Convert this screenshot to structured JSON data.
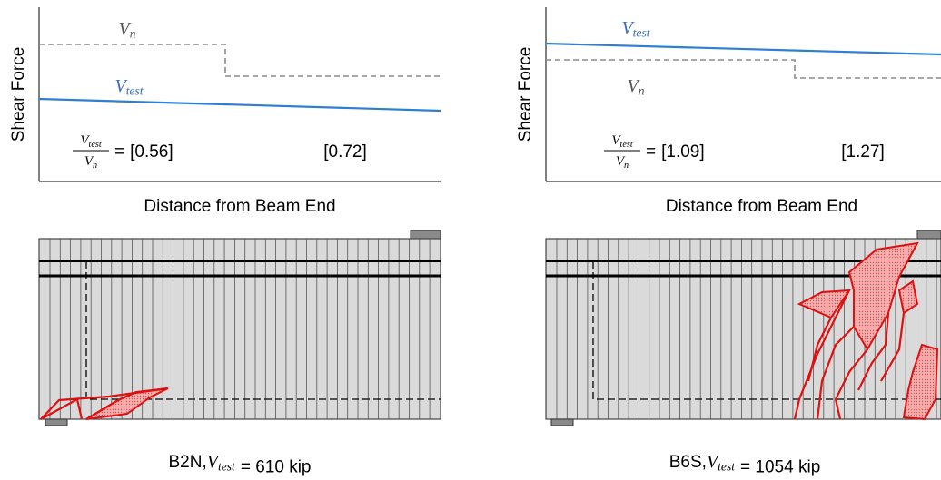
{
  "panels": [
    {
      "y_axis_label": "Shear Force",
      "x_axis_label": "Distance from Beam End",
      "vn_label": {
        "symbol": "V",
        "subscript": "n"
      },
      "vtest_label": {
        "symbol": "V",
        "subscript": "test"
      },
      "ratio": {
        "numerator": {
          "symbol": "V",
          "subscript": "test"
        },
        "denominator": {
          "symbol": "V",
          "subscript": "n"
        },
        "equals": "=",
        "values": [
          "[0.56]",
          "[0.72]"
        ]
      },
      "caption": {
        "specimen": "B2N,",
        "symbol": "V",
        "subscript": "test",
        "rest": "= 610 kip"
      }
    },
    {
      "y_axis_label": "Shear Force",
      "x_axis_label": "Distance from Beam End",
      "vn_label": {
        "symbol": "V",
        "subscript": "n"
      },
      "vtest_label": {
        "symbol": "V",
        "subscript": "test"
      },
      "ratio": {
        "numerator": {
          "symbol": "V",
          "subscript": "test"
        },
        "denominator": {
          "symbol": "V",
          "subscript": "n"
        },
        "equals": "=",
        "values": [
          "[1.09]",
          "[1.27]"
        ]
      },
      "caption": {
        "specimen": "B6S,",
        "symbol": "V",
        "subscript": "test",
        "rest": "= 1054 kip"
      }
    }
  ]
}
